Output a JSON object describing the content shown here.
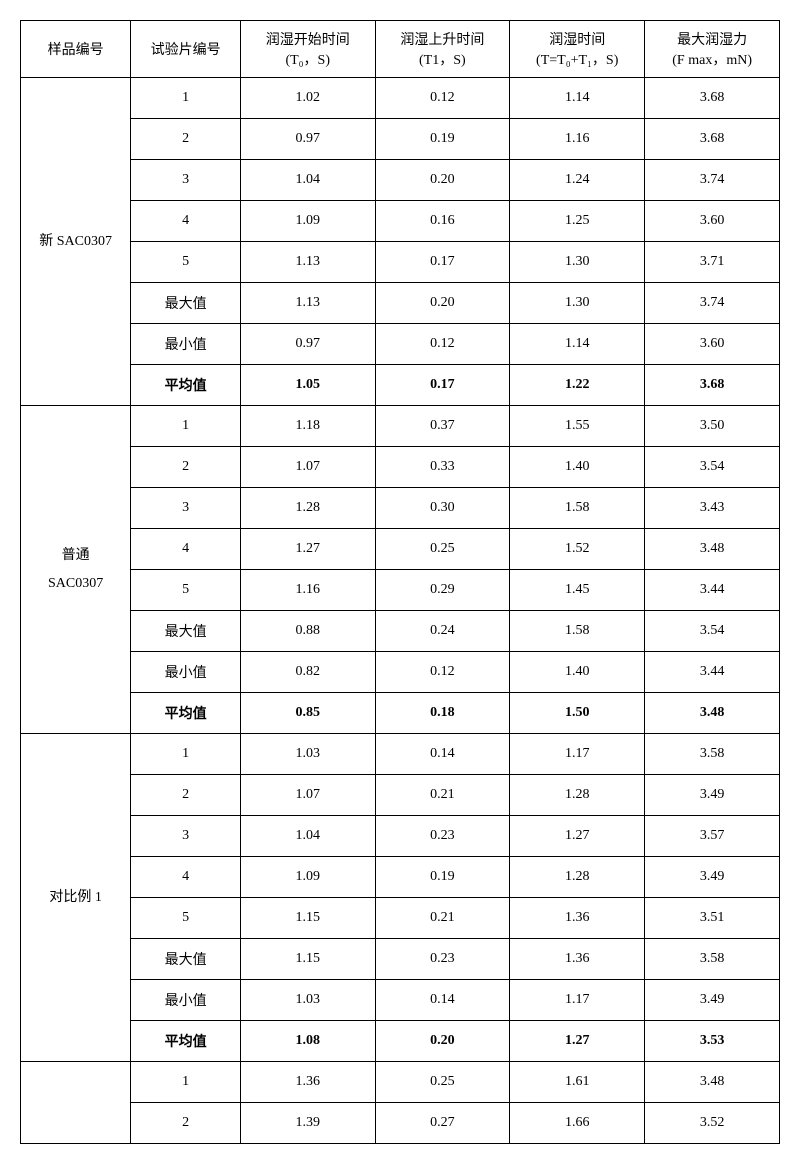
{
  "headers": {
    "sample": "样品编号",
    "test": "试验片编号",
    "t0_line1": "润湿开始时间",
    "t0_line2": "(T₀，S)",
    "t1_line1": "润湿上升时间",
    "t1_line2": "(T1，S)",
    "t_line1": "润湿时间",
    "t_line2": "(T=T₀+T₁，S)",
    "f_line1": "最大润湿力",
    "f_line2": "(F max，mN)"
  },
  "labels": {
    "max": "最大值",
    "min": "最小值",
    "avg": "平均值"
  },
  "groups": [
    {
      "name": "新 SAC0307",
      "rows": [
        {
          "test": "1",
          "t0": "1.02",
          "t1": "0.12",
          "t": "1.14",
          "f": "3.68",
          "bold": false
        },
        {
          "test": "2",
          "t0": "0.97",
          "t1": "0.19",
          "t": "1.16",
          "f": "3.68",
          "bold": false
        },
        {
          "test": "3",
          "t0": "1.04",
          "t1": "0.20",
          "t": "1.24",
          "f": "3.74",
          "bold": false
        },
        {
          "test": "4",
          "t0": "1.09",
          "t1": "0.16",
          "t": "1.25",
          "f": "3.60",
          "bold": false
        },
        {
          "test": "5",
          "t0": "1.13",
          "t1": "0.17",
          "t": "1.30",
          "f": "3.71",
          "bold": false
        },
        {
          "test": "最大值",
          "t0": "1.13",
          "t1": "0.20",
          "t": "1.30",
          "f": "3.74",
          "bold": false
        },
        {
          "test": "最小值",
          "t0": "0.97",
          "t1": "0.12",
          "t": "1.14",
          "f": "3.60",
          "bold": false
        },
        {
          "test": "平均值",
          "t0": "1.05",
          "t1": "0.17",
          "t": "1.22",
          "f": "3.68",
          "bold": true
        }
      ]
    },
    {
      "name": "普通\nSAC0307",
      "rows": [
        {
          "test": "1",
          "t0": "1.18",
          "t1": "0.37",
          "t": "1.55",
          "f": "3.50",
          "bold": false
        },
        {
          "test": "2",
          "t0": "1.07",
          "t1": "0.33",
          "t": "1.40",
          "f": "3.54",
          "bold": false
        },
        {
          "test": "3",
          "t0": "1.28",
          "t1": "0.30",
          "t": "1.58",
          "f": "3.43",
          "bold": false
        },
        {
          "test": "4",
          "t0": "1.27",
          "t1": "0.25",
          "t": "1.52",
          "f": "3.48",
          "bold": false
        },
        {
          "test": "5",
          "t0": "1.16",
          "t1": "0.29",
          "t": "1.45",
          "f": "3.44",
          "bold": false
        },
        {
          "test": "最大值",
          "t0": "0.88",
          "t1": "0.24",
          "t": "1.58",
          "f": "3.54",
          "bold": false
        },
        {
          "test": "最小值",
          "t0": "0.82",
          "t1": "0.12",
          "t": "1.40",
          "f": "3.44",
          "bold": false
        },
        {
          "test": "平均值",
          "t0": "0.85",
          "t1": "0.18",
          "t": "1.50",
          "f": "3.48",
          "bold": true
        }
      ]
    },
    {
      "name": "对比例 1",
      "rows": [
        {
          "test": "1",
          "t0": "1.03",
          "t1": "0.14",
          "t": "1.17",
          "f": "3.58",
          "bold": false
        },
        {
          "test": "2",
          "t0": "1.07",
          "t1": "0.21",
          "t": "1.28",
          "f": "3.49",
          "bold": false
        },
        {
          "test": "3",
          "t0": "1.04",
          "t1": "0.23",
          "t": "1.27",
          "f": "3.57",
          "bold": false
        },
        {
          "test": "4",
          "t0": "1.09",
          "t1": "0.19",
          "t": "1.28",
          "f": "3.49",
          "bold": false
        },
        {
          "test": "5",
          "t0": "1.15",
          "t1": "0.21",
          "t": "1.36",
          "f": "3.51",
          "bold": false
        },
        {
          "test": "最大值",
          "t0": "1.15",
          "t1": "0.23",
          "t": "1.36",
          "f": "3.58",
          "bold": false
        },
        {
          "test": "最小值",
          "t0": "1.03",
          "t1": "0.14",
          "t": "1.17",
          "f": "3.49",
          "bold": false
        },
        {
          "test": "平均值",
          "t0": "1.08",
          "t1": "0.20",
          "t": "1.27",
          "f": "3.53",
          "bold": true
        }
      ]
    },
    {
      "name": "",
      "rows": [
        {
          "test": "1",
          "t0": "1.36",
          "t1": "0.25",
          "t": "1.61",
          "f": "3.48",
          "bold": false
        },
        {
          "test": "2",
          "t0": "1.39",
          "t1": "0.27",
          "t": "1.66",
          "f": "3.52",
          "bold": false
        }
      ]
    }
  ]
}
